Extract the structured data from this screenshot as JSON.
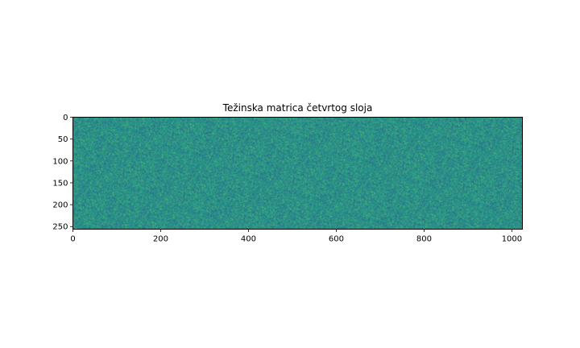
{
  "chart_data": {
    "type": "heatmap",
    "title": "Težinska matrica četvrtog sloja",
    "xlabel": "",
    "ylabel": "",
    "xlim": [
      0,
      1024
    ],
    "ylim": [
      256,
      0
    ],
    "x_ticks": [
      0,
      200,
      400,
      600,
      800,
      1000
    ],
    "y_ticks": [
      0,
      50,
      100,
      150,
      200,
      250
    ],
    "x_tick_labels": [
      "0",
      "200",
      "400",
      "600",
      "800",
      "1000"
    ],
    "y_tick_labels": [
      "0",
      "50",
      "100",
      "150",
      "200",
      "250"
    ],
    "matrix_shape": [
      256,
      1024
    ],
    "colormap": "viridis",
    "dominant_color": "#21918c",
    "pattern": "random noise",
    "grid": false,
    "legend": "none"
  }
}
